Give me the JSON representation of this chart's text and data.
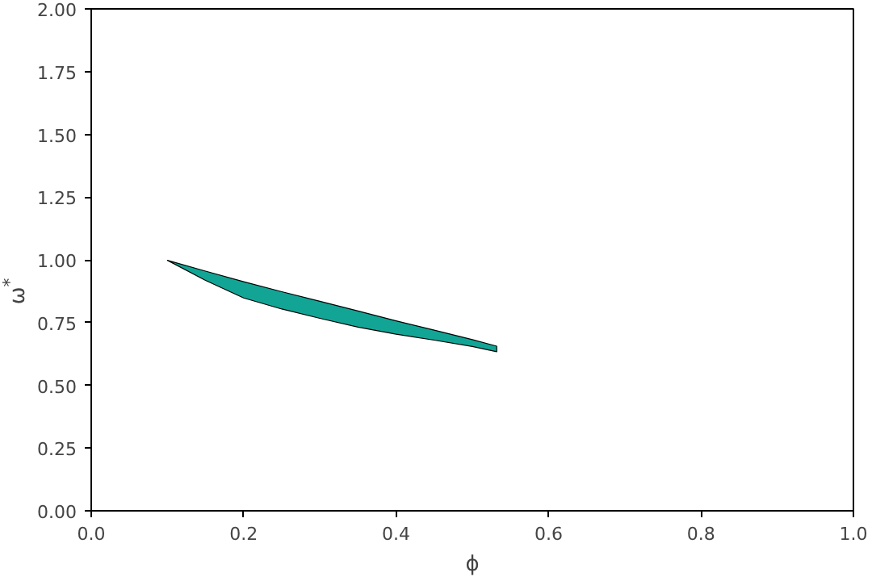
{
  "chart_data": {
    "type": "area",
    "xlabel": "ϕ",
    "ylabel": "ω$^{*}$",
    "xlim": [
      0,
      1
    ],
    "ylim": [
      0,
      2
    ],
    "xticks": [
      {
        "value": 0,
        "label": "0.0"
      },
      {
        "value": 0.2,
        "label": "0.2"
      },
      {
        "value": 0.4,
        "label": "0.4"
      },
      {
        "value": 0.6,
        "label": "0.6"
      },
      {
        "value": 0.8,
        "label": "0.8"
      },
      {
        "value": 1,
        "label": "1.0"
      }
    ],
    "yticks": [
      {
        "value": 0,
        "label": "0.00"
      },
      {
        "value": 0.25,
        "label": "0.25"
      },
      {
        "value": 0.5,
        "label": "0.50"
      },
      {
        "value": 0.75,
        "label": "0.75"
      },
      {
        "value": 1,
        "label": "1.00"
      },
      {
        "value": 1.25,
        "label": "1.25"
      },
      {
        "value": 1.5,
        "label": "1.50"
      },
      {
        "value": 1.75,
        "label": "1.75"
      },
      {
        "value": 2,
        "label": "2.00"
      }
    ],
    "grid": false,
    "series": [
      {
        "color": "#12a595",
        "x": [
          0.1,
          0.15,
          0.2,
          0.25,
          0.3,
          0.35,
          0.4,
          0.45,
          0.5,
          0.532
        ],
        "values": [
          null,
          null,
          null,
          null,
          null,
          null,
          null,
          null,
          null,
          null
        ],
        "upper": [
          0.998,
          0.955,
          0.913,
          0.873,
          0.835,
          0.796,
          0.757,
          0.72,
          0.682,
          0.656
        ],
        "lower": [
          0.998,
          0.918,
          0.848,
          0.804,
          0.767,
          0.732,
          0.704,
          0.68,
          0.655,
          0.634
        ]
      }
    ]
  }
}
